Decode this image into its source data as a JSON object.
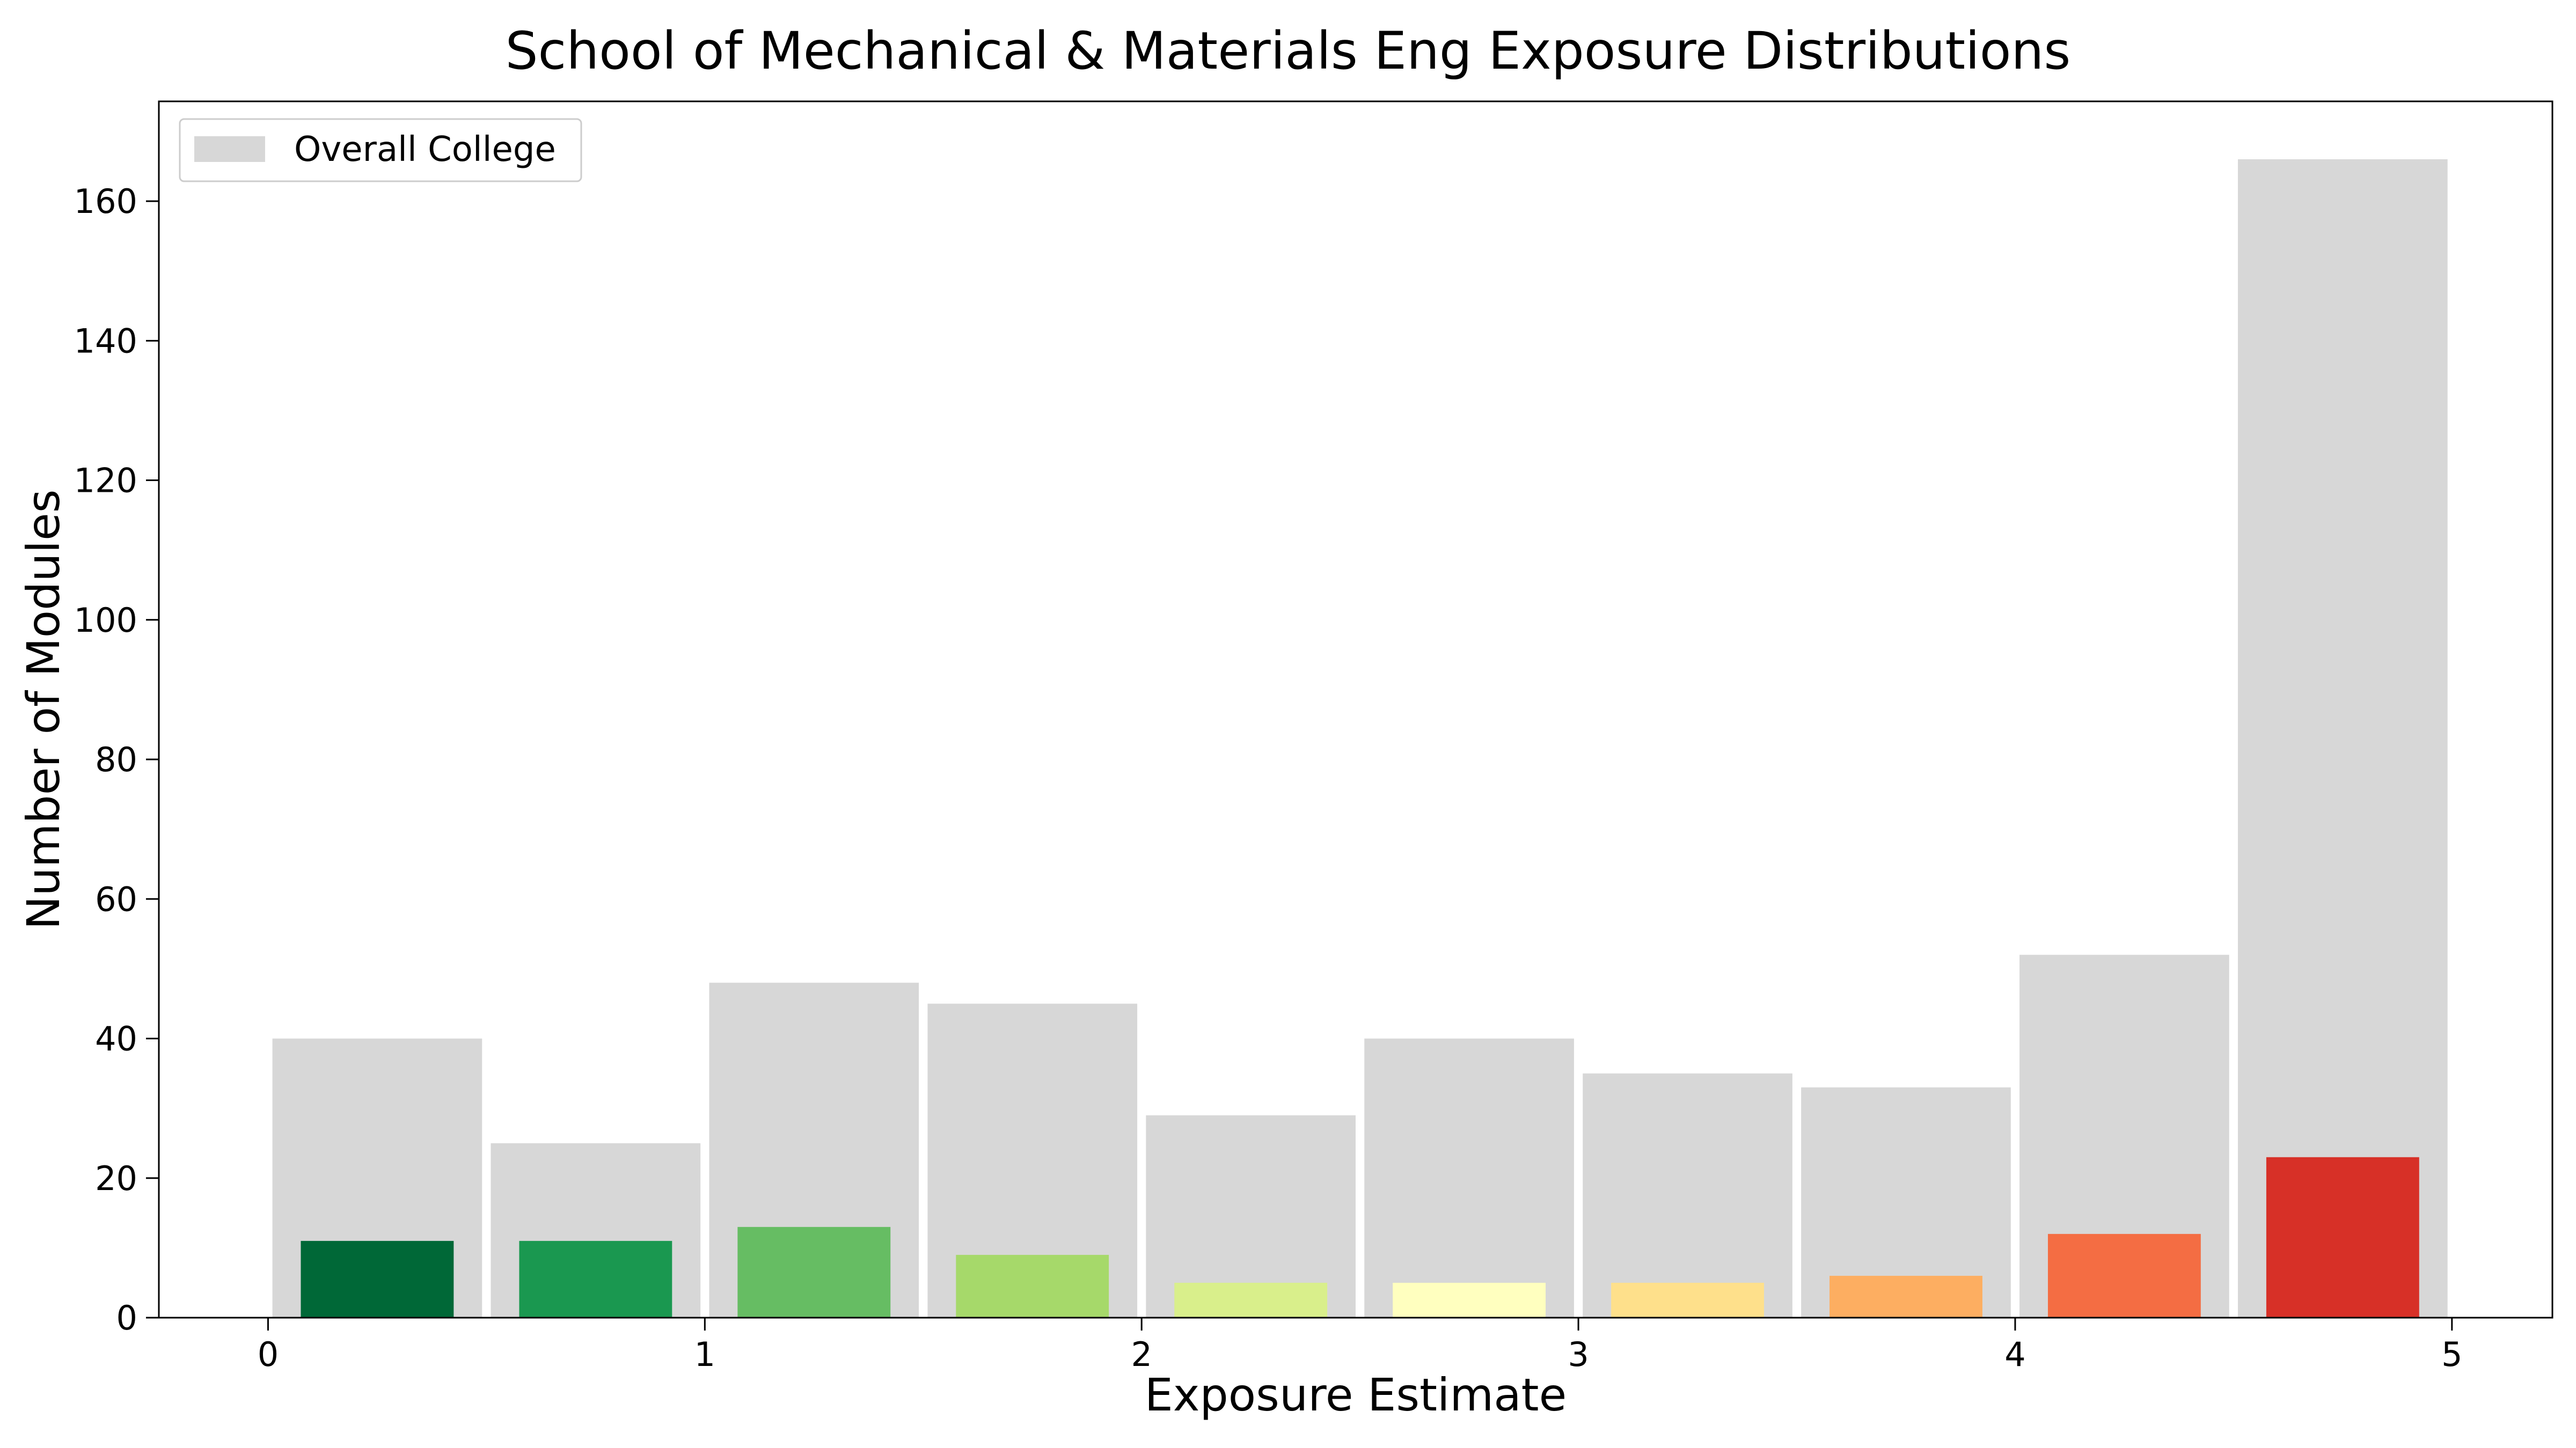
{
  "chart_data": {
    "type": "bar",
    "title": "School of Mechanical & Materials Eng Exposure Distributions",
    "xlabel": "Exposure Estimate",
    "ylabel": "Number of Modules",
    "xlim": [
      -0.25,
      5.23
    ],
    "ylim": [
      0,
      174.3
    ],
    "xticks": [
      0,
      1,
      2,
      3,
      4,
      5
    ],
    "yticks": [
      0,
      20,
      40,
      60,
      80,
      100,
      120,
      140,
      160
    ],
    "grid": false,
    "legend": {
      "position": "top-left",
      "entries": [
        "Overall College"
      ]
    },
    "bin_edges": [
      0,
      0.5,
      1,
      1.5,
      2,
      2.5,
      3,
      3.5,
      4,
      4.5,
      5
    ],
    "series": [
      {
        "name": "Overall College",
        "color": "#d7d7d7",
        "values": [
          40,
          25,
          48,
          45,
          29,
          40,
          35,
          33,
          52,
          166
        ]
      },
      {
        "colors": [
          "#006837",
          "#1a9850",
          "#66bd63",
          "#a6d96a",
          "#d9ef8b",
          "#ffffbf",
          "#fee08b",
          "#fdae61",
          "#f46d43",
          "#d73027"
        ],
        "values": [
          11,
          11,
          13,
          9,
          5,
          5,
          5,
          6,
          12,
          23
        ]
      }
    ]
  }
}
